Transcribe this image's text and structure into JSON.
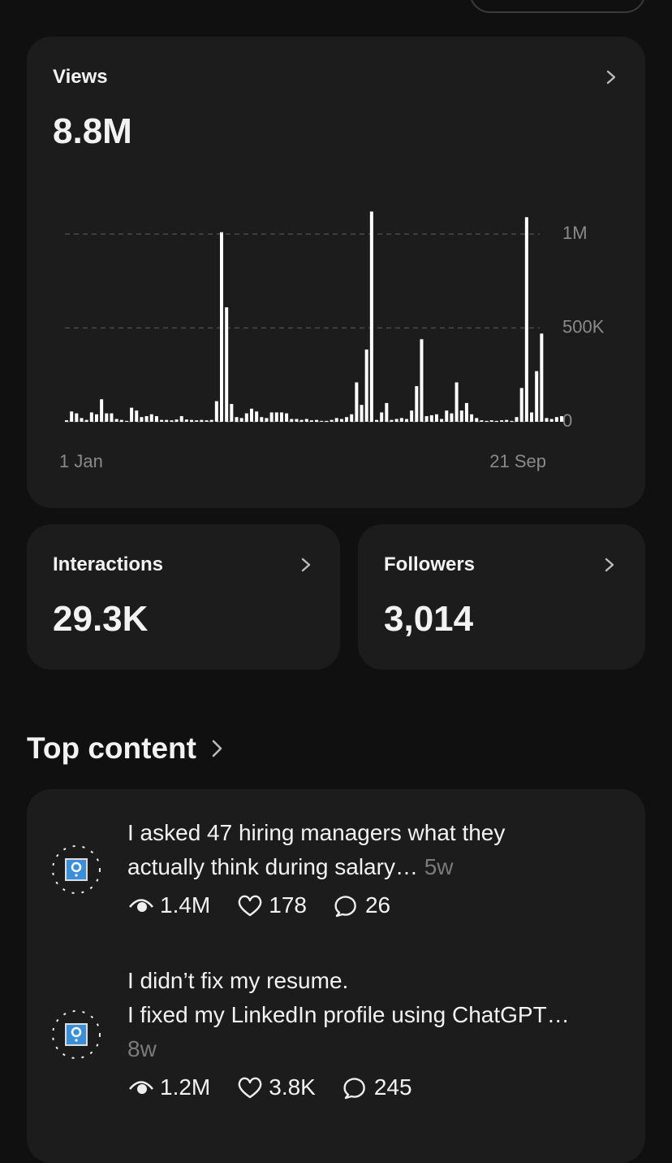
{
  "views_card": {
    "title": "Views",
    "total": "8.8M"
  },
  "chart_data": {
    "type": "bar",
    "categories": [
      "1 Jan",
      null,
      null,
      null,
      null,
      null,
      null,
      null,
      null,
      null,
      null,
      null,
      null,
      null,
      null,
      null,
      null,
      null,
      null,
      null,
      null,
      null,
      null,
      null,
      null,
      null,
      null,
      null,
      null,
      null,
      null,
      null,
      null,
      null,
      null,
      null,
      null,
      null,
      null,
      null,
      null,
      null,
      null,
      null,
      null,
      null,
      null,
      null,
      null,
      null,
      null,
      null,
      null,
      null,
      null,
      null,
      null,
      null,
      null,
      null,
      null,
      null,
      null,
      null,
      null,
      null,
      null,
      null,
      null,
      null,
      null,
      null,
      null,
      null,
      null,
      null,
      null,
      null,
      null,
      null,
      null,
      null,
      null,
      null,
      null,
      null,
      null,
      null,
      null,
      null,
      null,
      null,
      null,
      null,
      null,
      null,
      null,
      null,
      null,
      "21 Sep"
    ],
    "values": [
      8000,
      55000,
      45000,
      20000,
      10000,
      50000,
      40000,
      120000,
      45000,
      45000,
      15000,
      10000,
      5000,
      75000,
      60000,
      25000,
      30000,
      40000,
      30000,
      10000,
      10000,
      8000,
      12000,
      30000,
      12000,
      10000,
      8000,
      10000,
      8000,
      10000,
      110000,
      1010000,
      610000,
      95000,
      25000,
      20000,
      45000,
      70000,
      55000,
      25000,
      20000,
      50000,
      50000,
      50000,
      45000,
      15000,
      15000,
      10000,
      15000,
      8000,
      10000,
      5000,
      5000,
      10000,
      20000,
      15000,
      25000,
      40000,
      210000,
      90000,
      385000,
      1120000,
      10000,
      50000,
      100000,
      10000,
      15000,
      20000,
      15000,
      60000,
      190000,
      440000,
      30000,
      35000,
      40000,
      15000,
      60000,
      45000,
      210000,
      60000,
      100000,
      40000,
      20000,
      8000,
      5000,
      8000,
      5000,
      8000,
      10000,
      5000,
      25000,
      180000,
      1090000,
      50000,
      270000,
      470000,
      20000,
      15000,
      25000,
      30000
    ],
    "color": "#ffffff",
    "ylim": [
      0,
      1130000
    ],
    "yticks": [
      0,
      {
        "value": 500000,
        "label": "500K"
      },
      {
        "value": 1000000,
        "label": "1M"
      }
    ],
    "grid": true
  },
  "interactions_card": {
    "title": "Interactions",
    "total": "29.3K"
  },
  "followers_card": {
    "title": "Followers",
    "total": "3,014"
  },
  "top_content": {
    "title": "Top content",
    "posts": [
      {
        "text": "I asked 47 hiring managers what they actually think during salary…",
        "age": "5w",
        "views": "1.4M",
        "likes": "178",
        "replies": "26"
      },
      {
        "text": "I didn’t fix my resume.\nI fixed my LinkedIn profile using ChatGPT…",
        "age": "8w",
        "views": "1.2M",
        "likes": "3.8K",
        "replies": "245"
      }
    ]
  }
}
